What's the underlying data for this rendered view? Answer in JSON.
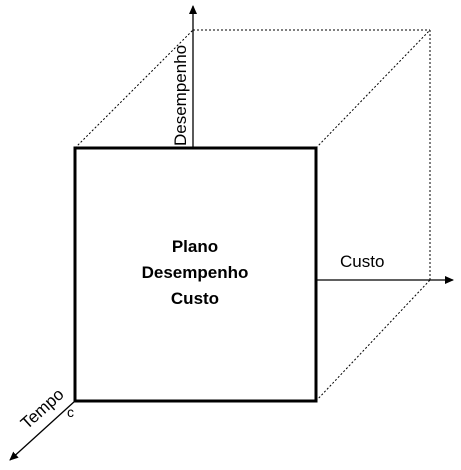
{
  "diagram": {
    "center_lines": [
      "Plano",
      "Desempenho",
      "Custo"
    ],
    "axis_vertical_label": "Desempenho",
    "axis_horizontal_label": "Custo",
    "axis_depth_label": "Tempo",
    "origin_label": "c"
  },
  "colors": {
    "stroke": "#000000",
    "background": "#ffffff"
  }
}
